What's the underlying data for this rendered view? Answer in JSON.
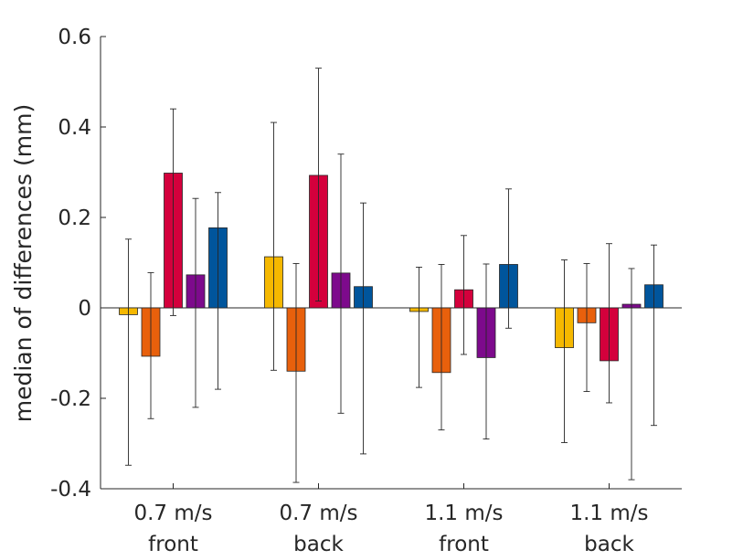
{
  "chart_data": {
    "type": "bar",
    "title": "",
    "xlabel": "",
    "ylabel": "median of differences (mm)",
    "ylim": [
      -0.4,
      0.6
    ],
    "yticks": [
      {
        "value": -0.4,
        "label": "-0.4"
      },
      {
        "value": -0.2,
        "label": "-0.2"
      },
      {
        "value": 0,
        "label": "0"
      },
      {
        "value": 0.2,
        "label": "0.2"
      },
      {
        "value": 0.4,
        "label": "0.4"
      },
      {
        "value": 0.6,
        "label": "0.6"
      }
    ],
    "categories": [
      {
        "line1": "0.7 m/s",
        "line2": "front"
      },
      {
        "line1": "0.7 m/s",
        "line2": "back"
      },
      {
        "line1": "1.1 m/s",
        "line2": "front"
      },
      {
        "line1": "1.1 m/s",
        "line2": "back"
      }
    ],
    "series": [
      {
        "color": "#f5b800",
        "values": [
          -0.015,
          0.113,
          -0.008,
          -0.088
        ],
        "err_low": [
          -0.348,
          -0.138,
          -0.176,
          -0.298
        ],
        "err_high": [
          0.152,
          0.41,
          0.09,
          0.106
        ]
      },
      {
        "color": "#e8600c",
        "values": [
          -0.107,
          -0.14,
          -0.143,
          -0.033
        ],
        "err_low": [
          -0.245,
          -0.386,
          -0.27,
          -0.185
        ],
        "err_high": [
          0.078,
          0.098,
          0.096,
          0.098
        ]
      },
      {
        "color": "#d4003c",
        "values": [
          0.298,
          0.293,
          0.04,
          -0.117
        ],
        "err_low": [
          -0.017,
          0.015,
          -0.103,
          -0.21
        ],
        "err_high": [
          0.44,
          0.53,
          0.16,
          0.142
        ]
      },
      {
        "color": "#7d0a8c",
        "values": [
          0.073,
          0.077,
          -0.11,
          0.008
        ],
        "err_low": [
          -0.22,
          -0.233,
          -0.29,
          -0.38
        ],
        "err_high": [
          0.242,
          0.34,
          0.097,
          0.087
        ]
      },
      {
        "color": "#00559c",
        "values": [
          0.177,
          0.047,
          0.096,
          0.051
        ],
        "err_low": [
          -0.18,
          -0.323,
          -0.045,
          -0.26
        ],
        "err_high": [
          0.255,
          0.232,
          0.263,
          0.139
        ]
      }
    ],
    "legend": "none",
    "grid": false
  }
}
